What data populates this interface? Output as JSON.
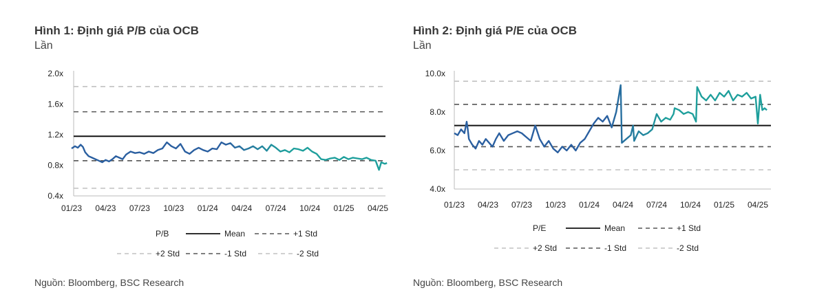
{
  "left": {
    "title": "Hình 1: Định giá P/B của OCB",
    "subtitle": "Lần",
    "source": "Nguồn: Bloomberg, BSC Research"
  },
  "right": {
    "title": "Hình 2: Định giá P/E của OCB",
    "subtitle": "Lần",
    "source": "Nguồn: Bloomberg, BSC Research"
  },
  "colors": {
    "early": "#2a5fa0",
    "late": "#1e9f9c",
    "mean": "#111111",
    "std1": "#555555",
    "std2": "#c0c0c0"
  },
  "chart_data": [
    {
      "type": "line",
      "title": "Hình 1: Định giá P/B của OCB",
      "ylabel": "Lần",
      "ylim": [
        0.4,
        2.0
      ],
      "yticks": [
        "0.4x",
        "0.8x",
        "1.2x",
        "1.6x",
        "2.0x"
      ],
      "xticks": [
        "01/23",
        "04/23",
        "07/23",
        "10/23",
        "01/24",
        "04/24",
        "07/24",
        "10/24",
        "01/25",
        "04/25"
      ],
      "legend": [
        "P/B",
        "Mean",
        "+1 Std",
        "+2 Std",
        "-1 Std",
        "-2 Std"
      ],
      "reference_lines": {
        "mean": 1.18,
        "plus1": 1.5,
        "plus2": 1.83,
        "minus1": 0.86,
        "minus2": 0.5
      },
      "series": [
        {
          "name": "P/B",
          "x": [
            0.0,
            0.3,
            0.55,
            0.8,
            1.0,
            1.2,
            1.5,
            1.8,
            2.1,
            2.4,
            2.7,
            3.0,
            3.3,
            3.6,
            3.9,
            4.2,
            4.5,
            4.8,
            5.2,
            5.6,
            6.0,
            6.4,
            6.8,
            7.2,
            7.6,
            8.0,
            8.4,
            8.8,
            9.2,
            9.6,
            10.0,
            10.4,
            10.8,
            11.2,
            11.6,
            12.0,
            12.4,
            12.8,
            13.2,
            13.6,
            14.0,
            14.4,
            14.8,
            15.2,
            15.6,
            16.0,
            16.4,
            16.8,
            17.2,
            17.6,
            18.0,
            18.4,
            18.8,
            19.2,
            19.6,
            20.0,
            20.4,
            20.8,
            21.2,
            21.6,
            22.0,
            22.4,
            22.8,
            23.2,
            23.6,
            24.0,
            24.4,
            24.8,
            25.2,
            25.6,
            26.0,
            26.4,
            26.8,
            27.1,
            27.3,
            27.6,
            27.8
          ],
          "y": [
            1.02,
            1.05,
            1.03,
            1.07,
            1.04,
            0.97,
            0.92,
            0.9,
            0.88,
            0.86,
            0.84,
            0.87,
            0.85,
            0.88,
            0.92,
            0.9,
            0.88,
            0.94,
            0.98,
            0.96,
            0.97,
            0.95,
            0.98,
            0.96,
            1.0,
            1.02,
            1.1,
            1.05,
            1.02,
            1.08,
            0.98,
            0.95,
            1.0,
            1.03,
            1.0,
            0.98,
            1.02,
            1.01,
            1.1,
            1.07,
            1.09,
            1.03,
            1.05,
            1.0,
            1.02,
            1.05,
            1.01,
            1.05,
            0.99,
            1.07,
            1.03,
            0.98,
            1.0,
            0.97,
            1.02,
            1.01,
            0.99,
            1.03,
            0.98,
            0.95,
            0.88,
            0.87,
            0.89,
            0.9,
            0.87,
            0.91,
            0.88,
            0.9,
            0.89,
            0.88,
            0.9,
            0.87,
            0.86,
            0.74,
            0.84,
            0.82,
            0.83
          ]
        }
      ]
    },
    {
      "type": "line",
      "title": "Hình 2: Định giá P/E của OCB",
      "ylabel": "Lần",
      "ylim": [
        4.0,
        10.0
      ],
      "yticks": [
        "4.0x",
        "6.0x",
        "8.0x",
        "10.0x"
      ],
      "xticks": [
        "01/23",
        "04/23",
        "07/23",
        "10/23",
        "01/24",
        "04/24",
        "07/24",
        "10/24",
        "01/25",
        "04/25"
      ],
      "legend": [
        "P/E",
        "Mean",
        "+1 Std",
        "+2 Std",
        "-1 Std",
        "-2 Std"
      ],
      "reference_lines": {
        "mean": 7.3,
        "plus1": 8.4,
        "plus2": 9.6,
        "minus1": 6.2,
        "minus2": 5.0
      },
      "series": [
        {
          "name": "P/E",
          "x": [
            0.0,
            0.3,
            0.6,
            0.9,
            1.1,
            1.2,
            1.3,
            1.6,
            1.9,
            2.2,
            2.5,
            2.8,
            3.1,
            3.4,
            3.7,
            4.0,
            4.4,
            4.8,
            5.2,
            5.6,
            6.0,
            6.4,
            6.8,
            7.2,
            7.6,
            8.0,
            8.4,
            8.8,
            9.2,
            9.6,
            10.0,
            10.4,
            10.8,
            11.2,
            11.6,
            12.0,
            12.4,
            12.8,
            13.2,
            13.6,
            14.0,
            14.4,
            14.8,
            14.9,
            15.3,
            15.7,
            15.9,
            16.0,
            16.4,
            16.8,
            17.2,
            17.6,
            18.0,
            18.4,
            18.8,
            19.2,
            19.5,
            19.6,
            20.0,
            20.4,
            20.8,
            21.2,
            21.5,
            21.6,
            22.0,
            22.4,
            22.8,
            23.2,
            23.6,
            24.0,
            24.4,
            24.8,
            25.2,
            25.6,
            26.0,
            26.4,
            26.8,
            27.0,
            27.2,
            27.4,
            27.6,
            27.8
          ],
          "y": [
            6.9,
            6.8,
            7.1,
            6.9,
            7.5,
            7.1,
            6.6,
            6.3,
            6.1,
            6.5,
            6.3,
            6.6,
            6.4,
            6.2,
            6.6,
            6.9,
            6.5,
            6.8,
            6.9,
            7.0,
            6.9,
            6.7,
            6.5,
            7.3,
            6.6,
            6.2,
            6.5,
            6.1,
            5.9,
            6.2,
            6.0,
            6.3,
            6.0,
            6.4,
            6.6,
            7.0,
            7.4,
            7.7,
            7.5,
            7.8,
            7.2,
            8.0,
            9.4,
            6.4,
            6.6,
            6.8,
            7.3,
            6.5,
            7.0,
            6.8,
            6.9,
            7.1,
            7.9,
            7.5,
            7.7,
            7.6,
            7.9,
            8.2,
            8.1,
            7.9,
            8.0,
            7.9,
            7.5,
            9.3,
            8.8,
            8.6,
            8.9,
            8.6,
            9.0,
            8.8,
            9.1,
            8.6,
            8.9,
            8.8,
            9.0,
            8.7,
            8.8,
            7.4,
            8.9,
            8.1,
            8.2,
            8.1
          ]
        }
      ]
    }
  ]
}
